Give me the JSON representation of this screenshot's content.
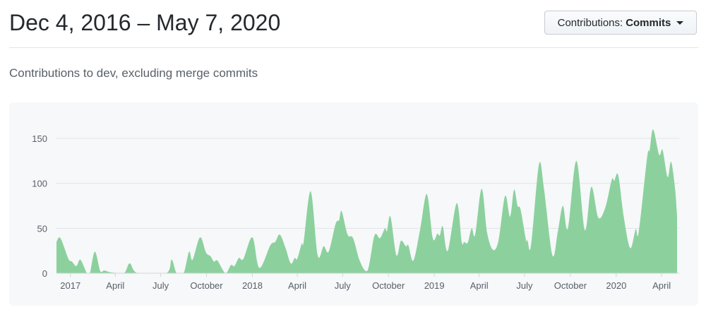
{
  "header": {
    "title": "Dec 4, 2016 – May 7, 2020"
  },
  "dropdown": {
    "label": "Contributions:",
    "value": "Commits",
    "icon": "caret-down-icon"
  },
  "subtitle": "Contributions to dev, excluding merge commits",
  "chart_data": {
    "type": "area",
    "fill_color": "#8cd19d",
    "grid": true,
    "xlim": [
      "2016-12-04",
      "2020-05-02"
    ],
    "ylim": [
      0,
      160
    ],
    "y_ticks": [
      0,
      50,
      100,
      150
    ],
    "x_ticks": [
      {
        "date": "2017-01-01",
        "label": "2017"
      },
      {
        "date": "2017-04-01",
        "label": "April"
      },
      {
        "date": "2017-07-01",
        "label": "July"
      },
      {
        "date": "2017-10-01",
        "label": "October"
      },
      {
        "date": "2018-01-01",
        "label": "2018"
      },
      {
        "date": "2018-04-01",
        "label": "April"
      },
      {
        "date": "2018-07-01",
        "label": "July"
      },
      {
        "date": "2018-10-01",
        "label": "October"
      },
      {
        "date": "2019-01-01",
        "label": "2019"
      },
      {
        "date": "2019-04-01",
        "label": "April"
      },
      {
        "date": "2019-07-01",
        "label": "July"
      },
      {
        "date": "2019-10-01",
        "label": "October"
      },
      {
        "date": "2020-01-01",
        "label": "2020"
      },
      {
        "date": "2020-04-01",
        "label": "April"
      }
    ],
    "points": [
      [
        "2016-12-04",
        35
      ],
      [
        "2016-12-12",
        39
      ],
      [
        "2016-12-28",
        16
      ],
      [
        "2017-01-04",
        13
      ],
      [
        "2017-01-13",
        8
      ],
      [
        "2017-01-21",
        15
      ],
      [
        "2017-02-03",
        0
      ],
      [
        "2017-02-09",
        0
      ],
      [
        "2017-02-19",
        24
      ],
      [
        "2017-03-02",
        2
      ],
      [
        "2017-03-10",
        3
      ],
      [
        "2017-03-23",
        1
      ],
      [
        "2017-04-18",
        0
      ],
      [
        "2017-04-30",
        11
      ],
      [
        "2017-05-16",
        0
      ],
      [
        "2017-07-12",
        0
      ],
      [
        "2017-07-23",
        15
      ],
      [
        "2017-08-02",
        0
      ],
      [
        "2017-08-16",
        0
      ],
      [
        "2017-08-27",
        24
      ],
      [
        "2017-09-03",
        15
      ],
      [
        "2017-09-18",
        40
      ],
      [
        "2017-09-30",
        23
      ],
      [
        "2017-10-09",
        19
      ],
      [
        "2017-10-16",
        13
      ],
      [
        "2017-10-23",
        14
      ],
      [
        "2017-11-08",
        0
      ],
      [
        "2017-11-19",
        9
      ],
      [
        "2017-11-26",
        8
      ],
      [
        "2017-12-05",
        17
      ],
      [
        "2017-12-14",
        16
      ],
      [
        "2018-01-01",
        40
      ],
      [
        "2018-01-15",
        6
      ],
      [
        "2018-02-06",
        31
      ],
      [
        "2018-02-16",
        35
      ],
      [
        "2018-02-25",
        43
      ],
      [
        "2018-03-08",
        29
      ],
      [
        "2018-03-19",
        11
      ],
      [
        "2018-03-27",
        17
      ],
      [
        "2018-04-01",
        16
      ],
      [
        "2018-04-10",
        33
      ],
      [
        "2018-04-14",
        35
      ],
      [
        "2018-04-28",
        91
      ],
      [
        "2018-05-12",
        20
      ],
      [
        "2018-05-24",
        30
      ],
      [
        "2018-06-03",
        24
      ],
      [
        "2018-06-17",
        55
      ],
      [
        "2018-06-24",
        59
      ],
      [
        "2018-06-29",
        69
      ],
      [
        "2018-07-11",
        43
      ],
      [
        "2018-07-22",
        39
      ],
      [
        "2018-08-05",
        13
      ],
      [
        "2018-08-20",
        3
      ],
      [
        "2018-09-03",
        42
      ],
      [
        "2018-09-14",
        39
      ],
      [
        "2018-09-24",
        50
      ],
      [
        "2018-09-28",
        47
      ],
      [
        "2018-10-05",
        63
      ],
      [
        "2018-10-17",
        20
      ],
      [
        "2018-10-26",
        36
      ],
      [
        "2018-11-05",
        30
      ],
      [
        "2018-11-10",
        31
      ],
      [
        "2018-11-20",
        14
      ],
      [
        "2018-12-04",
        50
      ],
      [
        "2018-12-17",
        88
      ],
      [
        "2018-12-29",
        39
      ],
      [
        "2019-01-07",
        44
      ],
      [
        "2019-01-12",
        42
      ],
      [
        "2019-01-18",
        52
      ],
      [
        "2019-01-28",
        25
      ],
      [
        "2019-02-15",
        78
      ],
      [
        "2019-02-25",
        35
      ],
      [
        "2019-03-02",
        35
      ],
      [
        "2019-03-09",
        34
      ],
      [
        "2019-03-17",
        50
      ],
      [
        "2019-03-24",
        43
      ],
      [
        "2019-04-06",
        94
      ],
      [
        "2019-04-17",
        45
      ],
      [
        "2019-04-29",
        26
      ],
      [
        "2019-05-10",
        37
      ],
      [
        "2019-05-23",
        86
      ],
      [
        "2019-06-02",
        63
      ],
      [
        "2019-06-10",
        93
      ],
      [
        "2019-06-17",
        75
      ],
      [
        "2019-06-23",
        71
      ],
      [
        "2019-07-04",
        37
      ],
      [
        "2019-07-07",
        37
      ],
      [
        "2019-07-14",
        31
      ],
      [
        "2019-07-30",
        121
      ],
      [
        "2019-08-09",
        94
      ],
      [
        "2019-08-26",
        20
      ],
      [
        "2019-09-06",
        47
      ],
      [
        "2019-09-16",
        75
      ],
      [
        "2019-09-26",
        50
      ],
      [
        "2019-10-13",
        125
      ],
      [
        "2019-10-30",
        48
      ],
      [
        "2019-11-12",
        96
      ],
      [
        "2019-11-26",
        62
      ],
      [
        "2019-12-10",
        73
      ],
      [
        "2019-12-23",
        104
      ],
      [
        "2019-12-28",
        103
      ],
      [
        "2020-01-05",
        109
      ],
      [
        "2020-01-16",
        63
      ],
      [
        "2020-01-29",
        28
      ],
      [
        "2020-02-09",
        49
      ],
      [
        "2020-02-15",
        46
      ],
      [
        "2020-03-03",
        129
      ],
      [
        "2020-03-08",
        137
      ],
      [
        "2020-03-15",
        160
      ],
      [
        "2020-03-27",
        132
      ],
      [
        "2020-04-03",
        137
      ],
      [
        "2020-04-13",
        107
      ],
      [
        "2020-04-20",
        124
      ],
      [
        "2020-04-28",
        94
      ],
      [
        "2020-05-02",
        64
      ]
    ]
  }
}
